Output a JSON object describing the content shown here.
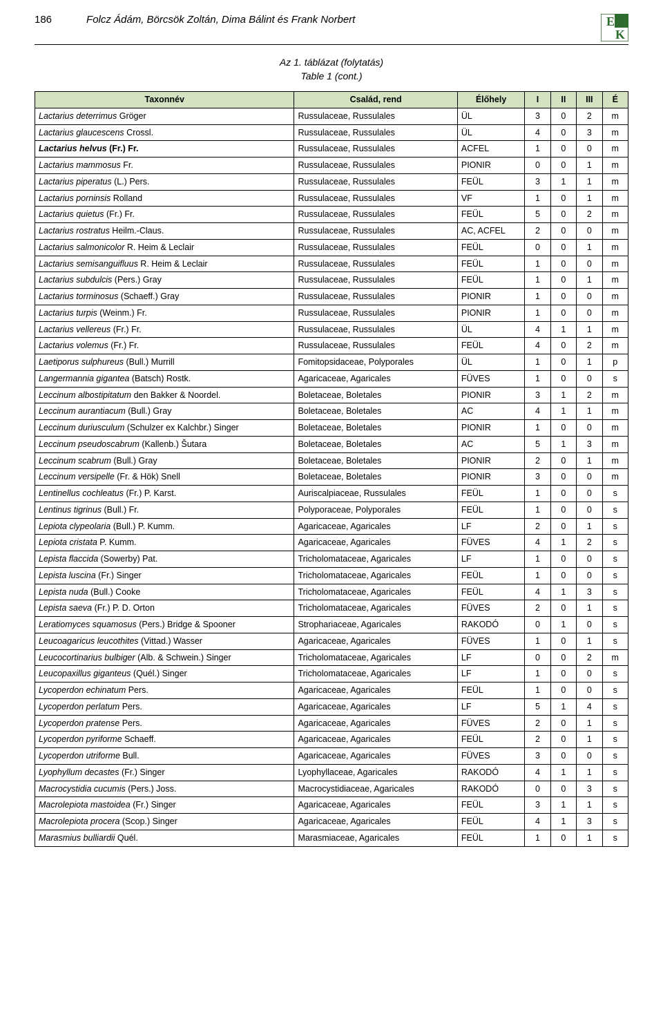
{
  "page_number": "186",
  "authors": "Folcz Ádám, Börcsök Zoltán, Dima Bálint és Frank Norbert",
  "caption_line1": "Az 1. táblázat (folytatás)",
  "caption_line2": "Table 1 (cont.)",
  "columns": [
    "Taxonnév",
    "Család, rend",
    "Élőhely",
    "I",
    "II",
    "III",
    "É"
  ],
  "header_bg": "#d4e2c1",
  "logo": {
    "bg": "#ffffff",
    "green": "#2e6b2e",
    "text_color": "#2e6b2e"
  },
  "rows": [
    {
      "t1": "Lactarius deterrimus",
      "a1": " Gröger",
      "fam": "Russulaceae, Russulales",
      "hab": "ÜL",
      "c1": "3",
      "c2": "0",
      "c3": "2",
      "c4": "m"
    },
    {
      "t1": "Lactarius glaucescens",
      "a1": " Crossl.",
      "fam": "Russulaceae, Russulales",
      "hab": "ÜL",
      "c1": "4",
      "c2": "0",
      "c3": "3",
      "c4": "m"
    },
    {
      "bold": true,
      "t1": "Lactarius helvus",
      "a1": " (Fr.) Fr.",
      "fam": "Russulaceae, Russulales",
      "hab": "ACFEL",
      "c1": "1",
      "c2": "0",
      "c3": "0",
      "c4": "m"
    },
    {
      "t1": "Lactarius mammosus",
      "a1": " Fr.",
      "fam": "Russulaceae, Russulales",
      "hab": "PIONIR",
      "c1": "0",
      "c2": "0",
      "c3": "1",
      "c4": "m"
    },
    {
      "t1": "Lactarius piperatus",
      "a1": " (L.) Pers.",
      "fam": "Russulaceae, Russulales",
      "hab": "FEÜL",
      "c1": "3",
      "c2": "1",
      "c3": "1",
      "c4": "m"
    },
    {
      "t1": "Lactarius porninsis",
      "a1": " Rolland",
      "fam": "Russulaceae, Russulales",
      "hab": "VF",
      "c1": "1",
      "c2": "0",
      "c3": "1",
      "c4": "m"
    },
    {
      "t1": "Lactarius quietus",
      "a1": " (Fr.) Fr.",
      "fam": "Russulaceae, Russulales",
      "hab": "FEÜL",
      "c1": "5",
      "c2": "0",
      "c3": "2",
      "c4": "m"
    },
    {
      "t1": "Lactarius rostratus",
      "a1": " Heilm.-Claus.",
      "fam": "Russulaceae, Russulales",
      "hab": "AC, ACFEL",
      "c1": "2",
      "c2": "0",
      "c3": "0",
      "c4": "m"
    },
    {
      "t1": "Lactarius salmonicolor",
      "a1": " R. Heim & Leclair",
      "fam": "Russulaceae, Russulales",
      "hab": "FEÜL",
      "c1": "0",
      "c2": "0",
      "c3": "1",
      "c4": "m"
    },
    {
      "t1": "Lactarius semisanguifluus",
      "a1": " R. Heim & Leclair",
      "fam": "Russulaceae, Russulales",
      "hab": "FEÜL",
      "c1": "1",
      "c2": "0",
      "c3": "0",
      "c4": "m"
    },
    {
      "t1": "Lactarius subdulcis",
      "a1": " (Pers.) Gray",
      "fam": "Russulaceae, Russulales",
      "hab": "FEÜL",
      "c1": "1",
      "c2": "0",
      "c3": "1",
      "c4": "m"
    },
    {
      "t1": "Lactarius torminosus",
      "a1": " (Schaeff.) Gray",
      "fam": "Russulaceae, Russulales",
      "hab": "PIONIR",
      "c1": "1",
      "c2": "0",
      "c3": "0",
      "c4": "m"
    },
    {
      "t1": "Lactarius turpis",
      "a1": " (Weinm.) Fr.",
      "fam": "Russulaceae, Russulales",
      "hab": "PIONIR",
      "c1": "1",
      "c2": "0",
      "c3": "0",
      "c4": "m"
    },
    {
      "t1": "Lactarius vellereus",
      "a1": " (Fr.) Fr.",
      "fam": "Russulaceae, Russulales",
      "hab": "ÜL",
      "c1": "4",
      "c2": "1",
      "c3": "1",
      "c4": "m"
    },
    {
      "t1": "Lactarius volemus",
      "a1": " (Fr.) Fr.",
      "fam": "Russulaceae, Russulales",
      "hab": "FEÜL",
      "c1": "4",
      "c2": "0",
      "c3": "2",
      "c4": "m"
    },
    {
      "t1": "Laetiporus sulphureus",
      "a1": " (Bull.) Murrill",
      "fam": "Fomitopsidaceae, Polyporales",
      "hab": "ÜL",
      "c1": "1",
      "c2": "0",
      "c3": "1",
      "c4": "p"
    },
    {
      "t1": "Langermannia gigantea",
      "a1": " (Batsch) Rostk.",
      "fam": "Agaricaceae, Agaricales",
      "hab": "FÜVES",
      "c1": "1",
      "c2": "0",
      "c3": "0",
      "c4": "s"
    },
    {
      "t1": "Leccinum albostipitatum",
      "a1": " den Bakker & Noordel.",
      "fam": "Boletaceae, Boletales",
      "hab": "PIONIR",
      "c1": "3",
      "c2": "1",
      "c3": "2",
      "c4": "m"
    },
    {
      "t1": "Leccinum aurantiacum",
      "a1": " (Bull.) Gray",
      "fam": "Boletaceae, Boletales",
      "hab": "AC",
      "c1": "4",
      "c2": "1",
      "c3": "1",
      "c4": "m"
    },
    {
      "t1": "Leccinum duriusculum",
      "a1": " (Schulzer ex Kalchbr.) Singer",
      "fam": "Boletaceae, Boletales",
      "hab": "PIONIR",
      "c1": "1",
      "c2": "0",
      "c3": "0",
      "c4": "m"
    },
    {
      "t1": "Leccinum pseudoscabrum",
      "a1": " (Kallenb.) Šutara",
      "fam": "Boletaceae, Boletales",
      "hab": "AC",
      "c1": "5",
      "c2": "1",
      "c3": "3",
      "c4": "m"
    },
    {
      "t1": "Leccinum scabrum",
      "a1": " (Bull.) Gray",
      "fam": "Boletaceae, Boletales",
      "hab": "PIONIR",
      "c1": "2",
      "c2": "0",
      "c3": "1",
      "c4": "m"
    },
    {
      "t1": "Leccinum versipelle",
      "a1": " (Fr. & Hök) Snell",
      "fam": "Boletaceae, Boletales",
      "hab": "PIONIR",
      "c1": "3",
      "c2": "0",
      "c3": "0",
      "c4": "m"
    },
    {
      "t1": "Lentinellus cochleatus",
      "a1": " (Fr.) P. Karst.",
      "fam": "Auriscalpiaceae, Russulales",
      "hab": "FEÜL",
      "c1": "1",
      "c2": "0",
      "c3": "0",
      "c4": "s"
    },
    {
      "t1": "Lentinus tigrinus",
      "a1": " (Bull.) Fr.",
      "fam": "Polyporaceae, Polyporales",
      "hab": "FEÜL",
      "c1": "1",
      "c2": "0",
      "c3": "0",
      "c4": "s"
    },
    {
      "t1": "Lepiota clypeolaria",
      "a1": " (Bull.) P. Kumm.",
      "fam": "Agaricaceae, Agaricales",
      "hab": "LF",
      "c1": "2",
      "c2": "0",
      "c3": "1",
      "c4": "s"
    },
    {
      "t1": "Lepiota cristata",
      "a1": " P. Kumm.",
      "fam": "Agaricaceae, Agaricales",
      "hab": "FÜVES",
      "c1": "4",
      "c2": "1",
      "c3": "2",
      "c4": "s"
    },
    {
      "t1": "Lepista flaccida",
      "a1": " (Sowerby) Pat.",
      "fam": "Tricholomataceae, Agaricales",
      "hab": "LF",
      "c1": "1",
      "c2": "0",
      "c3": "0",
      "c4": "s"
    },
    {
      "t1": "Lepista luscina",
      "a1": " (Fr.) Singer",
      "fam": "Tricholomataceae, Agaricales",
      "hab": "FEÜL",
      "c1": "1",
      "c2": "0",
      "c3": "0",
      "c4": "s"
    },
    {
      "t1": "Lepista nuda",
      "a1": " (Bull.) Cooke",
      "fam": "Tricholomataceae, Agaricales",
      "hab": "FEÜL",
      "c1": "4",
      "c2": "1",
      "c3": "3",
      "c4": "s"
    },
    {
      "t1": "Lepista saeva",
      "a1": " (Fr.) P. D. Orton",
      "fam": "Tricholomataceae, Agaricales",
      "hab": "FÜVES",
      "c1": "2",
      "c2": "0",
      "c3": "1",
      "c4": "s"
    },
    {
      "t1": "Leratiomyces squamosus",
      "a1": " (Pers.) Bridge & Spooner",
      "fam": "Strophariaceae, Agaricales",
      "hab": "RAKODÓ",
      "c1": "0",
      "c2": "1",
      "c3": "0",
      "c4": "s"
    },
    {
      "t1": "Leucoagaricus leucothites",
      "a1": " (Vittad.) Wasser",
      "fam": "Agaricaceae, Agaricales",
      "hab": "FÜVES",
      "c1": "1",
      "c2": "0",
      "c3": "1",
      "c4": "s"
    },
    {
      "t1": "Leucocortinarius bulbiger",
      "a1": " (Alb. & Schwein.) Singer",
      "fam": "Tricholomataceae, Agaricales",
      "hab": "LF",
      "c1": "0",
      "c2": "0",
      "c3": "2",
      "c4": "m"
    },
    {
      "t1": "Leucopaxillus giganteus",
      "a1": " (Quél.) Singer",
      "fam": "Tricholomataceae, Agaricales",
      "hab": "LF",
      "c1": "1",
      "c2": "0",
      "c3": "0",
      "c4": "s"
    },
    {
      "t1": "Lycoperdon echinatum",
      "a1": " Pers.",
      "fam": "Agaricaceae, Agaricales",
      "hab": "FEÜL",
      "c1": "1",
      "c2": "0",
      "c3": "0",
      "c4": "s"
    },
    {
      "t1": "Lycoperdon perlatum",
      "a1": " Pers.",
      "fam": "Agaricaceae, Agaricales",
      "hab": "LF",
      "c1": "5",
      "c2": "1",
      "c3": "4",
      "c4": "s"
    },
    {
      "t1": "Lycoperdon pratense",
      "a1": " Pers.",
      "fam": "Agaricaceae, Agaricales",
      "hab": "FÜVES",
      "c1": "2",
      "c2": "0",
      "c3": "1",
      "c4": "s"
    },
    {
      "t1": "Lycoperdon pyriforme",
      "a1": " Schaeff.",
      "fam": "Agaricaceae, Agaricales",
      "hab": "FEÜL",
      "c1": "2",
      "c2": "0",
      "c3": "1",
      "c4": "s"
    },
    {
      "t1": "Lycoperdon utriforme",
      "a1": " Bull.",
      "fam": "Agaricaceae, Agaricales",
      "hab": "FÜVES",
      "c1": "3",
      "c2": "0",
      "c3": "0",
      "c4": "s"
    },
    {
      "t1": "Lyophyllum decastes",
      "a1": " (Fr.) Singer",
      "fam": "Lyophyllaceae, Agaricales",
      "hab": "RAKODÓ",
      "c1": "4",
      "c2": "1",
      "c3": "1",
      "c4": "s"
    },
    {
      "t1": "Macrocystidia cucumis",
      "a1": " (Pers.) Joss.",
      "fam": "Macrocystidiaceae, Agaricales",
      "hab": "RAKODÓ",
      "c1": "0",
      "c2": "0",
      "c3": "3",
      "c4": "s"
    },
    {
      "t1": "Macrolepiota mastoidea",
      "a1": " (Fr.) Singer",
      "fam": "Agaricaceae, Agaricales",
      "hab": "FEÜL",
      "c1": "3",
      "c2": "1",
      "c3": "1",
      "c4": "s"
    },
    {
      "t1": "Macrolepiota procera",
      "a1": " (Scop.) Singer",
      "fam": "Agaricaceae, Agaricales",
      "hab": "FEÜL",
      "c1": "4",
      "c2": "1",
      "c3": "3",
      "c4": "s"
    },
    {
      "t1": "Marasmius bulliardii",
      "a1": " Quél.",
      "fam": "Marasmiaceae, Agaricales",
      "hab": "FEÜL",
      "c1": "1",
      "c2": "0",
      "c3": "1",
      "c4": "s"
    }
  ]
}
